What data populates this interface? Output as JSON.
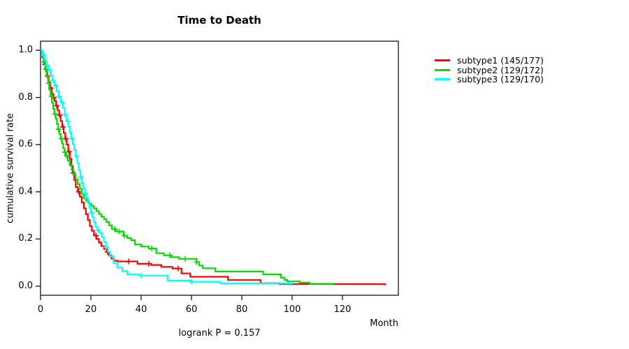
{
  "title": "Time to Death",
  "footer": "logrank P = 0.157",
  "axes": {
    "x": {
      "label": "Month",
      "ticks": [
        0,
        20,
        40,
        60,
        80,
        100,
        120
      ]
    },
    "y": {
      "label": "cumulative survival rate",
      "ticks": [
        0.0,
        0.2,
        0.4,
        0.6,
        0.8,
        1.0
      ]
    }
  },
  "legend": [
    {
      "label": "subtype1 (145/177)",
      "color": "#FF0000"
    },
    {
      "label": "subtype2 (129/172)",
      "color": "#00DC00"
    },
    {
      "label": "subtype3 (129/170)",
      "color": "#00FFFF"
    }
  ],
  "chart_data": {
    "type": "line",
    "subtype": "kaplan-meier-step",
    "title": "Time to Death",
    "xlabel": "Month",
    "ylabel": "cumulative survival rate",
    "xlim": [
      0,
      142
    ],
    "ylim": [
      -0.04,
      1.04
    ],
    "x_ticks": [
      0,
      20,
      40,
      60,
      80,
      100,
      120
    ],
    "y_ticks": [
      0.0,
      0.2,
      0.4,
      0.6,
      0.8,
      1.0
    ],
    "annotation": "logrank P = 0.157",
    "legend_position": "right-outside",
    "grid": false,
    "series": [
      {
        "name": "subtype1 (145/177)",
        "color": "#FF0000",
        "points": [
          [
            0,
            1.0
          ],
          [
            0.7,
            0.97
          ],
          [
            1.4,
            0.94
          ],
          [
            2,
            0.915
          ],
          [
            2.6,
            0.89
          ],
          [
            3.2,
            0.865
          ],
          [
            3.8,
            0.84
          ],
          [
            4.4,
            0.815
          ],
          [
            5,
            0.8
          ],
          [
            5.6,
            0.785
          ],
          [
            6.2,
            0.765
          ],
          [
            6.8,
            0.745
          ],
          [
            7.4,
            0.725
          ],
          [
            8,
            0.7
          ],
          [
            8.6,
            0.675
          ],
          [
            9.2,
            0.65
          ],
          [
            9.8,
            0.625
          ],
          [
            10.4,
            0.6
          ],
          [
            11,
            0.57
          ],
          [
            11.6,
            0.54
          ],
          [
            12.2,
            0.51
          ],
          [
            12.8,
            0.48
          ],
          [
            13.4,
            0.45
          ],
          [
            14,
            0.42
          ],
          [
            14.8,
            0.4
          ],
          [
            15.6,
            0.38
          ],
          [
            16.4,
            0.355
          ],
          [
            17.2,
            0.33
          ],
          [
            18,
            0.305
          ],
          [
            18.8,
            0.28
          ],
          [
            19.6,
            0.255
          ],
          [
            20.4,
            0.235
          ],
          [
            21.2,
            0.215
          ],
          [
            22.2,
            0.2
          ],
          [
            23.2,
            0.185
          ],
          [
            24.2,
            0.17
          ],
          [
            25.2,
            0.158
          ],
          [
            26.2,
            0.145
          ],
          [
            27.2,
            0.13
          ],
          [
            28.2,
            0.117
          ],
          [
            29.2,
            0.108
          ],
          [
            30.5,
            0.105
          ],
          [
            38.5,
            0.095
          ],
          [
            44,
            0.09
          ],
          [
            48,
            0.082
          ],
          [
            52.5,
            0.075
          ],
          [
            56,
            0.054
          ],
          [
            59.5,
            0.04
          ],
          [
            74.5,
            0.026
          ],
          [
            87.5,
            0.013
          ],
          [
            95,
            0.009
          ],
          [
            137,
            0.004
          ]
        ],
        "censor_times": [
          1.8,
          2.8,
          4.1,
          5.3,
          6.4,
          7.6,
          8.9,
          10,
          11.3,
          13,
          15.2,
          22,
          26.6,
          35,
          43,
          54.7
        ]
      },
      {
        "name": "subtype2 (129/172)",
        "color": "#00DC00",
        "points": [
          [
            0,
            1.0
          ],
          [
            0.6,
            0.975
          ],
          [
            1.2,
            0.95
          ],
          [
            1.8,
            0.92
          ],
          [
            2.4,
            0.89
          ],
          [
            3,
            0.86
          ],
          [
            3.5,
            0.832
          ],
          [
            4,
            0.805
          ],
          [
            4.5,
            0.778
          ],
          [
            5,
            0.752
          ],
          [
            5.5,
            0.73
          ],
          [
            6,
            0.71
          ],
          [
            6.5,
            0.688
          ],
          [
            7,
            0.665
          ],
          [
            7.5,
            0.645
          ],
          [
            8,
            0.625
          ],
          [
            8.5,
            0.605
          ],
          [
            9,
            0.585
          ],
          [
            9.5,
            0.568
          ],
          [
            10,
            0.552
          ],
          [
            10.8,
            0.532
          ],
          [
            11.6,
            0.512
          ],
          [
            12.4,
            0.492
          ],
          [
            13.2,
            0.472
          ],
          [
            14,
            0.452
          ],
          [
            14.8,
            0.432
          ],
          [
            15.6,
            0.412
          ],
          [
            16.4,
            0.392
          ],
          [
            17.2,
            0.372
          ],
          [
            18.2,
            0.36
          ],
          [
            19.2,
            0.35
          ],
          [
            20.2,
            0.34
          ],
          [
            21.2,
            0.33
          ],
          [
            22.2,
            0.318
          ],
          [
            23.2,
            0.306
          ],
          [
            24.2,
            0.295
          ],
          [
            25.2,
            0.285
          ],
          [
            26.2,
            0.272
          ],
          [
            27.2,
            0.258
          ],
          [
            28.3,
            0.242
          ],
          [
            30,
            0.232
          ],
          [
            33,
            0.214
          ],
          [
            34.5,
            0.204
          ],
          [
            36,
            0.195
          ],
          [
            37.5,
            0.177
          ],
          [
            40,
            0.168
          ],
          [
            43,
            0.16
          ],
          [
            46,
            0.14
          ],
          [
            49,
            0.131
          ],
          [
            52,
            0.123
          ],
          [
            55,
            0.116
          ],
          [
            62,
            0.102
          ],
          [
            63,
            0.088
          ],
          [
            64.5,
            0.076
          ],
          [
            69.5,
            0.062
          ],
          [
            88.5,
            0.05
          ],
          [
            95.5,
            0.036
          ],
          [
            97,
            0.027
          ],
          [
            98,
            0.02
          ],
          [
            103,
            0.015
          ],
          [
            107,
            0.01
          ],
          [
            116.5,
            0.004
          ]
        ],
        "censor_times": [
          1.5,
          2.1,
          3.3,
          4.4,
          5.7,
          7.1,
          8.3,
          9.7,
          10.4,
          29.5,
          31.2,
          33.3,
          44.2,
          51.4,
          57.5,
          62
        ]
      },
      {
        "name": "subtype3 (129/170)",
        "color": "#00FFFF",
        "points": [
          [
            0,
            1.0
          ],
          [
            0.8,
            0.98
          ],
          [
            1.6,
            0.957
          ],
          [
            2.4,
            0.936
          ],
          [
            3.2,
            0.915
          ],
          [
            4,
            0.893
          ],
          [
            4.8,
            0.871
          ],
          [
            5.6,
            0.849
          ],
          [
            6.4,
            0.827
          ],
          [
            7.2,
            0.805
          ],
          [
            8,
            0.78
          ],
          [
            8.8,
            0.755
          ],
          [
            9.6,
            0.728
          ],
          [
            10.4,
            0.7
          ],
          [
            11,
            0.676
          ],
          [
            11.6,
            0.652
          ],
          [
            12.2,
            0.627
          ],
          [
            12.8,
            0.602
          ],
          [
            13.4,
            0.577
          ],
          [
            14,
            0.552
          ],
          [
            14.6,
            0.522
          ],
          [
            15.2,
            0.492
          ],
          [
            15.8,
            0.462
          ],
          [
            16.4,
            0.437
          ],
          [
            17,
            0.415
          ],
          [
            17.6,
            0.394
          ],
          [
            18.2,
            0.373
          ],
          [
            18.8,
            0.352
          ],
          [
            19.4,
            0.332
          ],
          [
            20,
            0.312
          ],
          [
            20.6,
            0.292
          ],
          [
            21.2,
            0.272
          ],
          [
            21.9,
            0.252
          ],
          [
            22.6,
            0.238
          ],
          [
            23.4,
            0.226
          ],
          [
            24.4,
            0.208
          ],
          [
            25.2,
            0.188
          ],
          [
            26,
            0.166
          ],
          [
            26.8,
            0.146
          ],
          [
            27.6,
            0.127
          ],
          [
            29,
            0.097
          ],
          [
            30.5,
            0.079
          ],
          [
            32.5,
            0.064
          ],
          [
            34.5,
            0.05
          ],
          [
            39,
            0.045
          ],
          [
            50.5,
            0.024
          ],
          [
            60,
            0.019
          ],
          [
            71.5,
            0.012
          ],
          [
            99.5,
            0.012
          ]
        ],
        "censor_times": [
          1.2,
          2.5,
          3.7,
          4.9,
          6.1,
          7.3,
          8.5,
          9.7,
          10.9,
          12.4,
          14.2,
          16.1,
          17.8,
          20.2,
          22.8,
          26,
          40,
          60,
          99.5
        ]
      }
    ]
  },
  "plot_geometry_note": ""
}
